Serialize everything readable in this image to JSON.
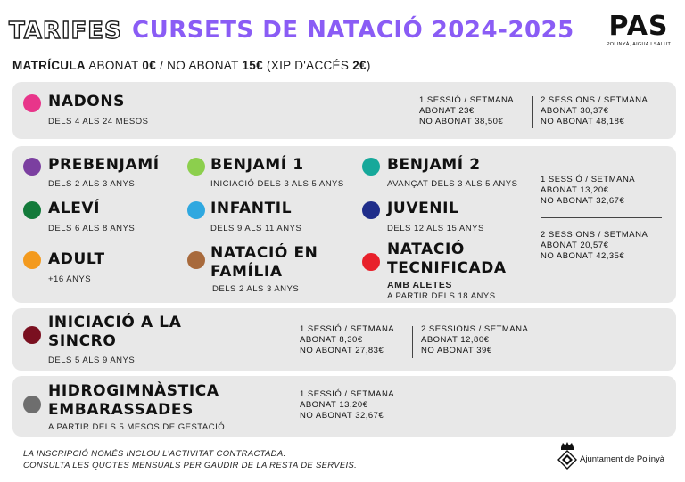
{
  "header": {
    "tarifes": "TARIFES",
    "title": "CURSETS DE NATACIÓ 2024-2025",
    "logo_text": "PAS",
    "logo_sub": "POLINYÀ, AIGUA I SALUT"
  },
  "matricula": {
    "label": "MATRÍCULA",
    "abonat": "ABONAT",
    "abonat_price": "0€",
    "sep": " / ",
    "no_abonat": "NO ABONAT",
    "no_abonat_price": "15€",
    "xip": "(XIP D'ACCÉS",
    "xip_price": "2€",
    "xip_close": ")"
  },
  "colors": {
    "accent": "#8a5cf5",
    "nadons": "#e8358a",
    "prebenjami": "#7b3fa0",
    "benjami1": "#8ccf4d",
    "benjami2": "#16a89a",
    "alevi": "#137a3a",
    "infantil": "#2fa8e0",
    "juvenil": "#1f2d8a",
    "adult": "#f39a1e",
    "familia": "#a86a3c",
    "tecnificada": "#e8202a",
    "sincro": "#7a1020",
    "hidro": "#6e6e6e"
  },
  "nadons": {
    "name": "NADONS",
    "age": "DELS 4 ALS 24 MESOS",
    "p1": [
      "1 SESSIÓ / SETMANA",
      "ABONAT 23€",
      "NO ABONAT 38,50€"
    ],
    "p2": [
      "2 SESSIONS / SETMANA",
      "ABONAT 30,37€",
      "NO ABONAT 48,18€"
    ]
  },
  "groups": {
    "prebenjami": {
      "name": "PREBENJAMÍ",
      "age": "DELS 2 ALS 3 ANYS"
    },
    "benjami1": {
      "name": "BENJAMÍ 1",
      "age": "INICIACIÓ DELS 3 ALS 5 ANYS"
    },
    "benjami2": {
      "name": "BENJAMÍ 2",
      "age": "AVANÇAT DELS 3 ALS 5 ANYS"
    },
    "alevi": {
      "name": "ALEVÍ",
      "age": "DELS 6 ALS 8 ANYS"
    },
    "infantil": {
      "name": "INFANTIL",
      "age": "DELS 9 ALS 11 ANYS"
    },
    "juvenil": {
      "name": "JUVENIL",
      "age": "DELS 12 ALS 15 ANYS"
    },
    "adult": {
      "name": "ADULT",
      "age": "+16 ANYS"
    },
    "familia": {
      "name": "NATACIÓ EN FAMÍLIA",
      "age": "DELS 2 ALS 3 ANYS"
    },
    "tecnificada": {
      "name": "NATACIÓ TECNIFICADA",
      "sub": "AMB ALETES",
      "age": "A PARTIR DELS 18 ANYS"
    },
    "p1": [
      "1 SESSIÓ / SETMANA",
      "ABONAT 13,20€",
      "NO ABONAT 32,67€"
    ],
    "p2": [
      "2 SESSIONS / SETMANA",
      "ABONAT 20,57€",
      "NO ABONAT 42,35€"
    ]
  },
  "sincro": {
    "name": "INICIACIÓ A LA SINCRO",
    "age": "DELS 5 ALS 9 ANYS",
    "p1": [
      "1 SESSIÓ / SETMANA",
      "ABONAT 8,30€",
      "NO ABONAT 27,83€"
    ],
    "p2": [
      "2 SESSIONS / SETMANA",
      "ABONAT 12,80€",
      "NO ABONAT 39€"
    ]
  },
  "hidro": {
    "name": "HIDROGIMNÀSTICA EMBARASSADES",
    "age": "A PARTIR DELS 5 MESOS DE GESTACIÓ",
    "p1": [
      "1 SESSIÓ / SETMANA",
      "ABONAT 13,20€",
      "NO ABONAT 32,67€"
    ]
  },
  "footer": {
    "line1": "LA INSCRIPCIÓ NOMÉS INCLOU L'ACTIVITAT CONTRACTADA.",
    "line2": "CONSULTA LES QUOTES MENSUALS PER GAUDIR DE LA RESTA DE SERVEIS.",
    "ajuntament": "Ajuntament de Polinyà"
  }
}
